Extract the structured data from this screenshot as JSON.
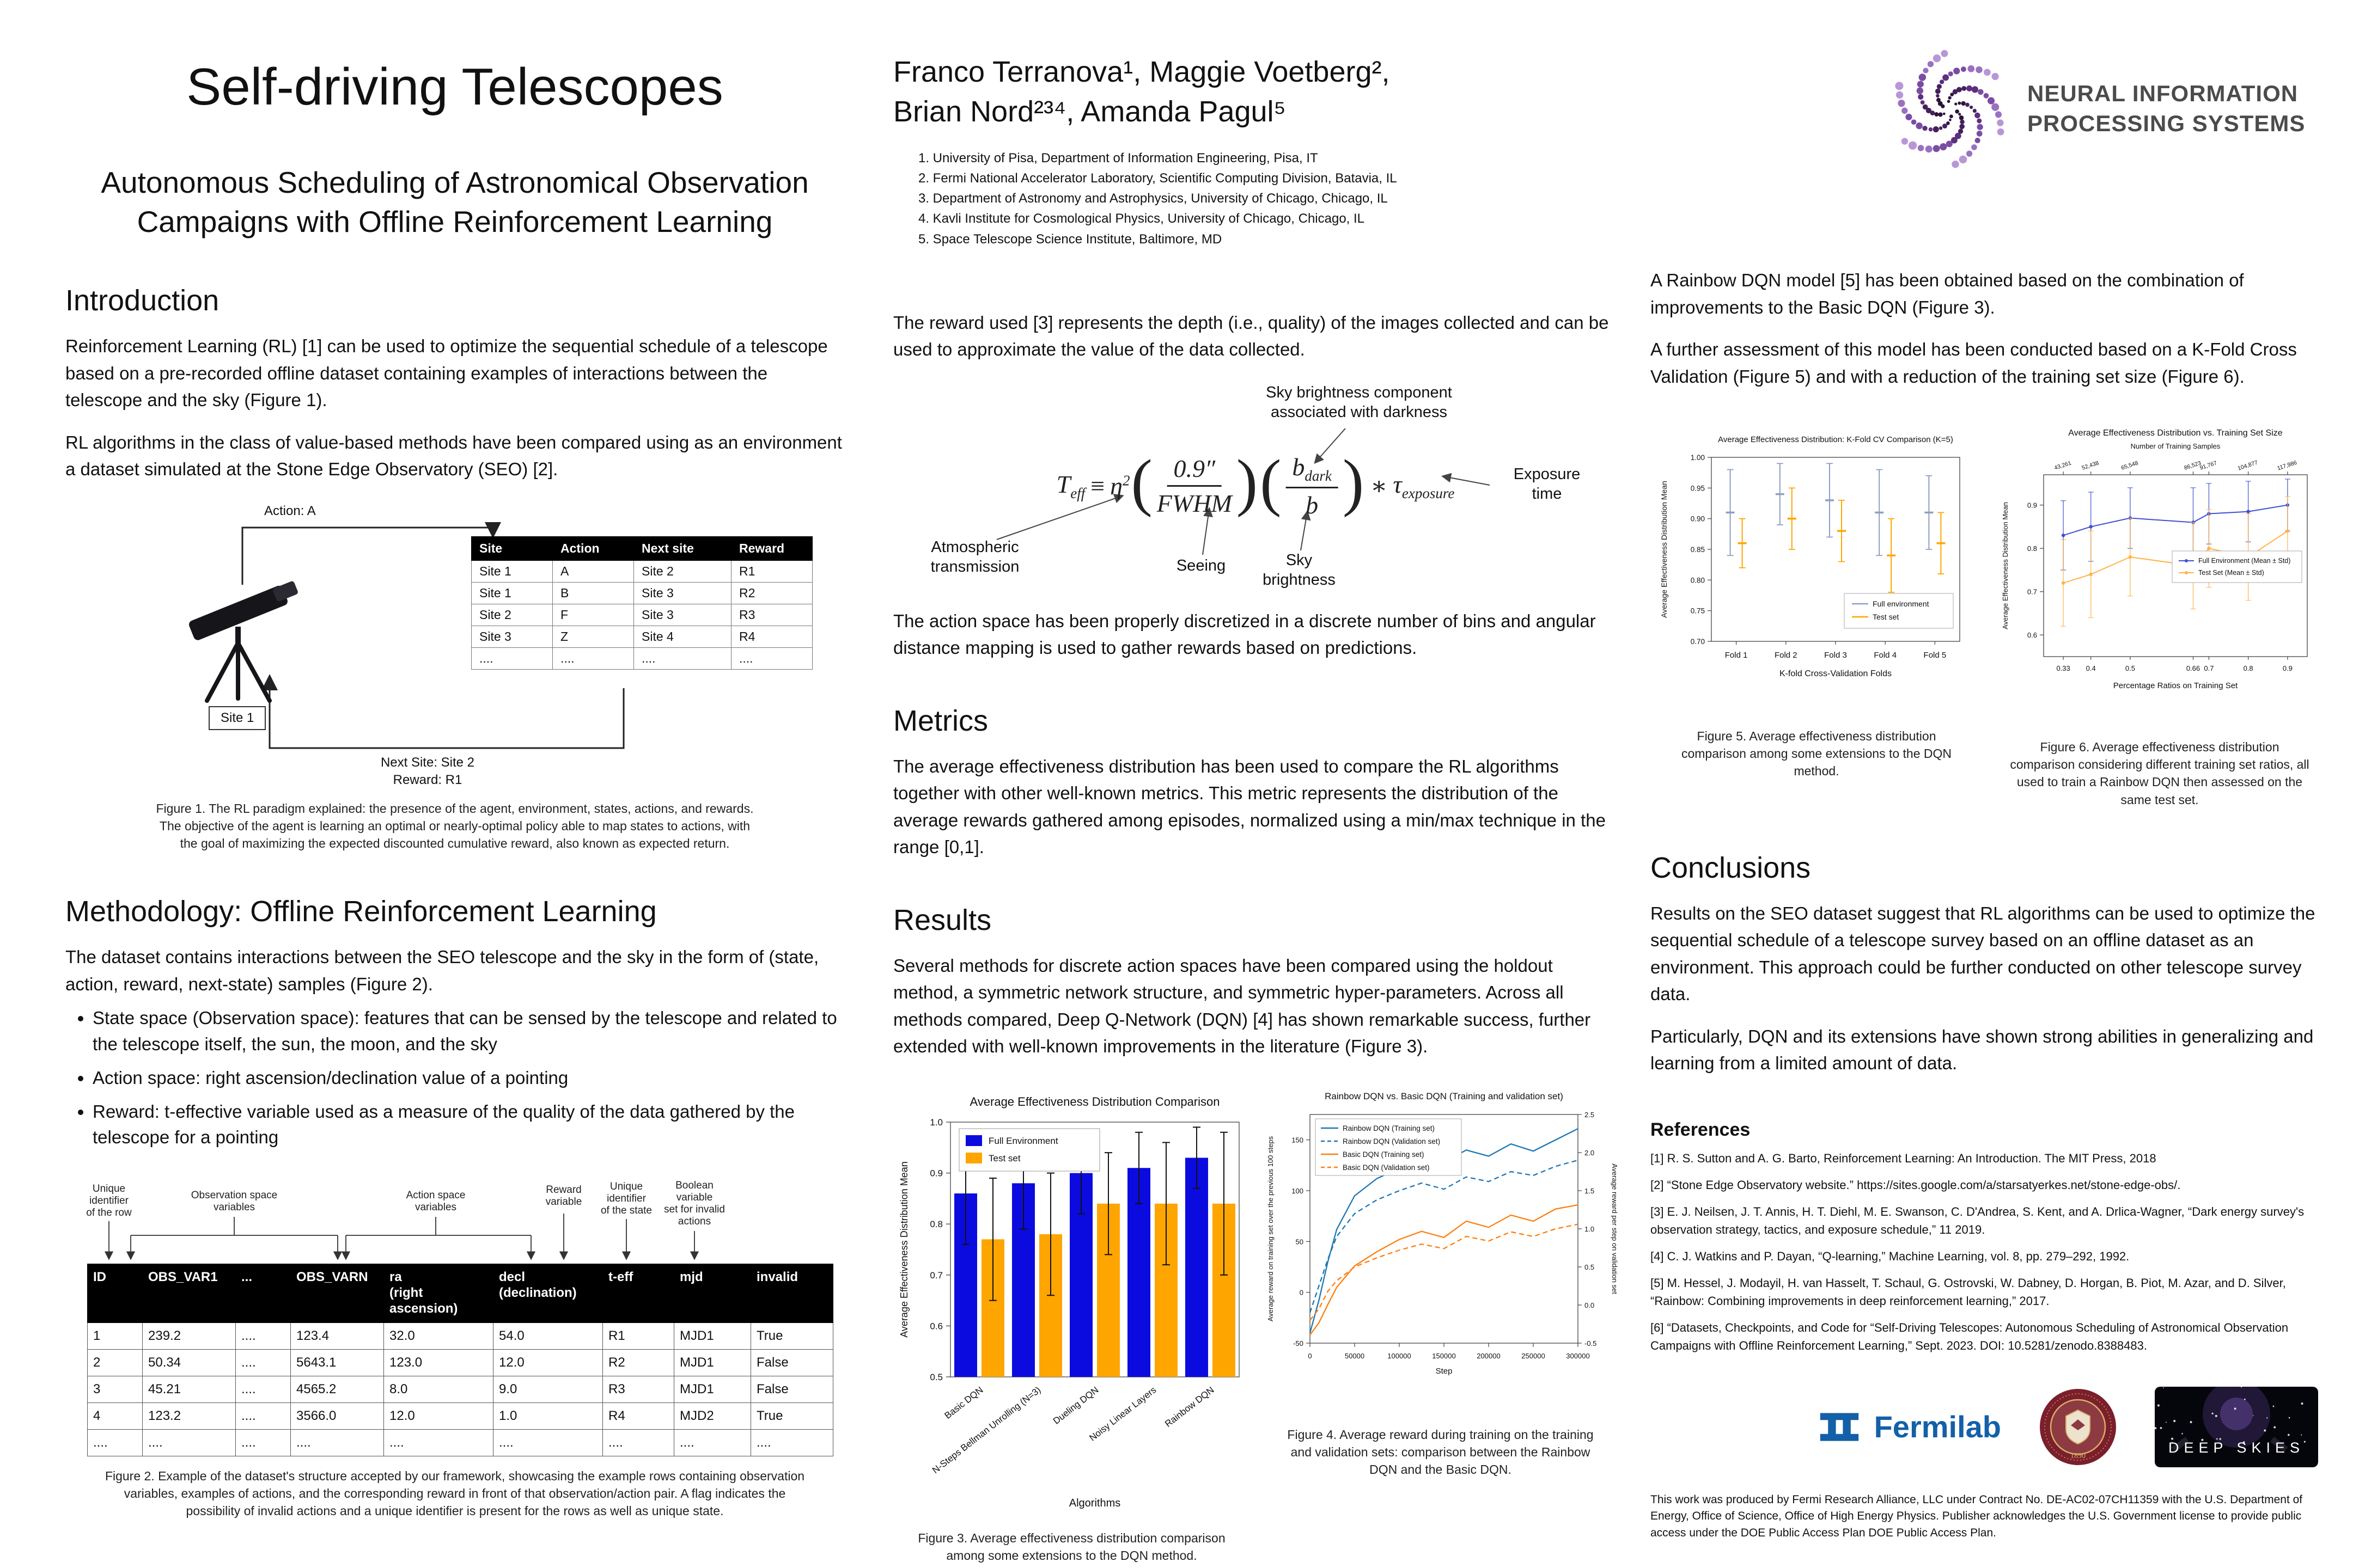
{
  "header": {
    "title": "Self-driving Telescopes",
    "subtitle": "Autonomous Scheduling of Astronomical Observation\nCampaigns with Offline Reinforcement Learning",
    "authors_line1": "Franco Terranova¹, Maggie Voetberg²,",
    "authors_line2": "Brian Nord²³⁴, Amanda Pagul⁵",
    "affiliations": [
      "1. University of Pisa, Department of Information Engineering, Pisa, IT",
      "2. Fermi National Accelerator Laboratory, Scientific Computing Division, Batavia, IL",
      "3. Department of Astronomy and Astrophysics, University of Chicago, Chicago, IL",
      "4. Kavli Institute for Cosmological Physics, University of Chicago, Chicago, IL",
      "5. Space Telescope Science Institute, Baltimore, MD"
    ],
    "neurips_text": "NEURAL INFORMATION\nPROCESSING SYSTEMS"
  },
  "intro": {
    "heading": "Introduction",
    "p1": "Reinforcement Learning (RL) [1] can be used to optimize the sequential schedule of a telescope based on a pre-recorded offline dataset containing examples of interactions between the telescope and the sky (Figure 1).",
    "p2": "RL algorithms in the class of value-based methods have been compared using as an environment a dataset simulated at the Stone Edge Observatory (SEO) [2]."
  },
  "fig1": {
    "action_label": "Action: A",
    "site_label": "Site 1",
    "next_site_label": "Next Site: Site 2",
    "reward_label": "Reward: R1",
    "table": {
      "headers": [
        "Site",
        "Action",
        "Next site",
        "Reward"
      ],
      "rows": [
        [
          "Site 1",
          "A",
          "Site 2",
          "R1"
        ],
        [
          "Site 1",
          "B",
          "Site 3",
          "R2"
        ],
        [
          "Site 2",
          "F",
          "Site 3",
          "R3"
        ],
        [
          "Site 3",
          "Z",
          "Site 4",
          "R4"
        ],
        [
          "....",
          "....",
          "....",
          "...."
        ]
      ]
    },
    "caption": "Figure 1. The RL paradigm explained: the presence of the agent, environment, states, actions, and rewards. The objective of the agent is learning an optimal or nearly-optimal policy able to map states to actions, with the goal of maximizing the expected discounted cumulative reward, also known as expected return."
  },
  "methodology": {
    "heading": "Methodology: Offline Reinforcement Learning",
    "p1": "The dataset contains interactions between the SEO telescope and the sky in the form of (state, action, reward, next-state) samples (Figure 2).",
    "bullets": [
      "State space (Observation space): features that can be sensed by the telescope and related to the telescope itself, the sun, the moon, and the sky",
      "Action space: right ascension/declination value of a pointing",
      "Reward: t-effective variable used as a measure of the quality of the data gathered by the telescope for a pointing"
    ]
  },
  "fig2": {
    "annotations": {
      "row_id": "Unique\nidentifier\nof the row",
      "obs_space": "Observation space\nvariables",
      "action_space": "Action space\nvariables",
      "reward": "Reward\nvariable",
      "state_id": "Unique\nidentifier\nof the state",
      "invalid": "Boolean\nvariable\nset for invalid\nactions"
    },
    "table": {
      "headers": [
        "ID",
        "OBS_VAR1",
        "...",
        "OBS_VARN",
        "ra\n(right\nascension)",
        "decl\n(declination)",
        "t-eff",
        "mjd",
        "invalid"
      ],
      "rows": [
        [
          "1",
          "239.2",
          "....",
          "123.4",
          "32.0",
          "54.0",
          "R1",
          "MJD1",
          "True"
        ],
        [
          "2",
          "50.34",
          "....",
          "5643.1",
          "123.0",
          "12.0",
          "R2",
          "MJD1",
          "False"
        ],
        [
          "3",
          "45.21",
          "....",
          "4565.2",
          "8.0",
          "9.0",
          "R3",
          "MJD1",
          "False"
        ],
        [
          "4",
          "123.2",
          "....",
          "3566.0",
          "12.0",
          "1.0",
          "R4",
          "MJD2",
          "True"
        ],
        [
          "....",
          "....",
          "....",
          "....",
          "....",
          "....",
          "....",
          "....",
          "...."
        ]
      ]
    },
    "caption": "Figure 2. Example of the dataset's structure accepted by our framework, showcasing the example rows containing observation variables, examples of actions, and the corresponding reward in front of that observation/action pair. A flag indicates the possibility of invalid actions and a unique identifier is present for the rows as well as unique state."
  },
  "middle": {
    "reward_p": "The reward used [3] represents the depth (i.e., quality) of the images collected and can be used to approximate the value of the data collected.",
    "action_p": "The action space has been properly discretized in a discrete number of bins and angular distance mapping is used to gather rewards based on predictions.",
    "metrics_heading": "Metrics",
    "metrics_p": "The average effectiveness distribution has been used to compare the RL algorithms together with other well-known metrics. This metric represents the distribution of the average rewards gathered among episodes, normalized using a min/max technique in the range [0,1].",
    "results_heading": "Results",
    "results_p": "Several methods for discrete action spaces have been compared using the holdout method, a symmetric network structure, and symmetric hyper-parameters. Across all methods compared, Deep Q-Network (DQN) [4] has shown remarkable success, further extended with well-known improvements in the literature (Figure 3)."
  },
  "equation": {
    "T": "T",
    "T_sub": "eff",
    "equiv": "≡",
    "eta": "η",
    "eta_sup": "2",
    "lp": "(",
    "rp": ")",
    "f1n": "0.9″",
    "f1d": "FWHM",
    "f2n": "b",
    "f2n_sub": "dark",
    "f2d": "b",
    "star": "∗",
    "tau": "τ",
    "tau_sub": "exposure",
    "ann_dark": "Sky brightness component\nassociated with darkness",
    "ann_atm": "Atmospheric\ntransmission",
    "ann_seeing": "Seeing",
    "ann_skyb": "Sky\nbrightness",
    "ann_exp": "Exposure\ntime"
  },
  "fig3_caption": "Figure 3. Average effectiveness distribution comparison among some extensions to the DQN method.",
  "fig4_caption": "Figure 4. Average reward during training on the training and validation sets: comparison between the Rainbow DQN and the Basic DQN.",
  "right": {
    "p1": "A Rainbow DQN model [5] has been obtained based on the combination of improvements to the Basic DQN (Figure 3).",
    "p2": "A further assessment of this model has been conducted based on a K-Fold Cross Validation (Figure 5) and with a reduction of the training set size (Figure 6).",
    "fig5_caption": "Figure 5. Average effectiveness distribution comparison among some extensions to the DQN method.",
    "fig6_caption": "Figure 6. Average effectiveness distribution comparison considering different training set ratios, all used to train a Rainbow DQN then assessed on the same test set.",
    "conclusions_heading": "Conclusions",
    "conclusions_p1": "Results on the SEO dataset suggest that RL algorithms can be used to optimize the sequential schedule of a telescope survey based on an offline dataset as an environment. This approach could be further conducted on other telescope survey data.",
    "conclusions_p2": "Particularly, DQN and its extensions have shown strong abilities in generalizing and learning from a limited amount of data.",
    "references_heading": "References",
    "references": [
      "[1] R. S. Sutton and A. G. Barto, Reinforcement Learning: An Introduction. The MIT Press, 2018",
      "[2] “Stone Edge Observatory website.” https://sites.google.com/a/starsatyerkes.net/stone-edge-obs/.",
      "[3] E. J. Neilsen, J. T. Annis, H. T. Diehl, M. E. Swanson, C. D'Andrea, S. Kent, and A. Drlica-Wagner, “Dark energy survey's observation strategy, tactics, and exposure schedule,” 11 2019.",
      "[4] C. J. Watkins and P. Dayan, “Q-learning,” Machine Learning, vol. 8, pp. 279–292, 1992.",
      "[5] M. Hessel, J. Modayil, H. van Hasselt, T. Schaul, G. Ostrovski, W. Dabney, D. Horgan, B. Piot, M. Azar, and D. Silver, “Rainbow: Combining improvements in deep reinforcement learning,” 2017.",
      "[6] “Datasets, Checkpoints, and Code for “Self-Driving Telescopes: Autonomous Scheduling of Astronomical Observation Campaigns with Offline Reinforcement Learning,” Sept. 2023. DOI: 10.5281/zenodo.8388483."
    ],
    "ack": "This work was produced by Fermi Research Alliance, LLC under Contract No. DE-AC02-07CH11359 with the U.S. Department of Energy, Office of Science, Office of High Energy Physics. Publisher acknowledges the U.S. Government license to provide public access under the DOE Public Access Plan DOE Public Access Plan."
  },
  "logos": {
    "fermilab": "Fermilab",
    "deep_skies": "DEEP SKIES",
    "uchicago_year": "1890"
  },
  "chart_data": [
    {
      "id": "fig3",
      "type": "bar",
      "title": "Average Effectiveness Distribution Comparison",
      "xlabel": "Algorithms",
      "ylabel": "Average Effectiveness Distribution Mean",
      "ylim": [
        0.5,
        1.0
      ],
      "yticks": [
        "0.5",
        "0.6",
        "0.7",
        "0.8",
        "0.9",
        "1.0"
      ],
      "categories": [
        "Basic DQN",
        "N-Steps Bellman Unrolling (N=3)",
        "Dueling DQN",
        "Noisy Linear Layers",
        "Rainbow DQN"
      ],
      "series": [
        {
          "name": "Full Environment",
          "color": "#0b0bdf",
          "values": [
            0.86,
            0.88,
            0.9,
            0.91,
            0.93
          ],
          "errors": [
            0.1,
            0.09,
            0.08,
            0.07,
            0.06
          ]
        },
        {
          "name": "Test set",
          "color": "#ffa500",
          "values": [
            0.77,
            0.78,
            0.84,
            0.84,
            0.84
          ],
          "errors": [
            0.12,
            0.12,
            0.1,
            0.12,
            0.14
          ]
        }
      ]
    },
    {
      "id": "fig4",
      "type": "line",
      "title": "Rainbow DQN vs. Basic DQN (Training and validation set)",
      "xlabel": "Step",
      "ylabel_left": "Average reward on training set over the previous 100 steps",
      "ylabel_right": "Average reward per step on validation set",
      "xlim": [
        0,
        300000
      ],
      "xticks": [
        "0",
        "50000",
        "100000",
        "150000",
        "200000",
        "250000",
        "300000"
      ],
      "ylim_left": [
        -50,
        175
      ],
      "yticks_left": [
        "-50",
        "0",
        "50",
        "100",
        "150"
      ],
      "ylim_right": [
        -0.5,
        2.5
      ],
      "yticks_right": [
        "-0.5",
        "0.0",
        "0.5",
        "1.0",
        "1.5",
        "2.0",
        "2.5"
      ],
      "x": [
        0,
        10000,
        20000,
        30000,
        50000,
        75000,
        100000,
        125000,
        150000,
        175000,
        200000,
        225000,
        250000,
        275000,
        300000
      ],
      "series": [
        {
          "name": "Rainbow DQN (Training set)",
          "axis": "left",
          "style": "solid",
          "color": "#1f77b4",
          "values": [
            -40,
            -8,
            30,
            62,
            95,
            112,
            122,
            135,
            128,
            140,
            134,
            146,
            139,
            150,
            161
          ]
        },
        {
          "name": "Rainbow DQN (Validation set)",
          "axis": "right",
          "style": "dashed",
          "color": "#1f77b4",
          "values": [
            -0.1,
            0.25,
            0.6,
            0.9,
            1.2,
            1.38,
            1.5,
            1.6,
            1.52,
            1.68,
            1.62,
            1.75,
            1.7,
            1.82,
            1.9
          ]
        },
        {
          "name": "Basic DQN (Training set)",
          "axis": "left",
          "style": "solid",
          "color": "#ff7f0e",
          "values": [
            -42,
            -30,
            -12,
            5,
            26,
            40,
            52,
            60,
            54,
            70,
            64,
            76,
            70,
            82,
            86
          ]
        },
        {
          "name": "Basic DQN (Validation set)",
          "axis": "right",
          "style": "dashed",
          "color": "#ff7f0e",
          "values": [
            -0.2,
            -0.05,
            0.18,
            0.32,
            0.5,
            0.62,
            0.72,
            0.8,
            0.74,
            0.9,
            0.84,
            0.96,
            0.9,
            1.0,
            1.06
          ]
        }
      ]
    },
    {
      "id": "fig5",
      "type": "errorbar",
      "title": "Average Effectiveness Distribution: K-Fold CV Comparison (K=5)",
      "xlabel": "K-fold Cross-Validation Folds",
      "ylabel": "Average Effectiveness Distribution Mean",
      "ylim": [
        0.7,
        1.0
      ],
      "yticks": [
        "0.70",
        "0.75",
        "0.80",
        "0.85",
        "0.90",
        "0.95",
        "1.00"
      ],
      "categories": [
        "Fold 1",
        "Fold 2",
        "Fold 3",
        "Fold 4",
        "Fold 5"
      ],
      "series": [
        {
          "name": "Full environment",
          "color": "#8e9fc4",
          "values": [
            0.91,
            0.94,
            0.93,
            0.91,
            0.91
          ],
          "errors": [
            0.07,
            0.05,
            0.06,
            0.07,
            0.06
          ]
        },
        {
          "name": "Test set",
          "color": "#ffa500",
          "values": [
            0.86,
            0.9,
            0.88,
            0.84,
            0.86
          ],
          "errors": [
            0.04,
            0.05,
            0.05,
            0.06,
            0.05
          ]
        }
      ]
    },
    {
      "id": "fig6",
      "type": "line-errorbar",
      "title": "Average Effectiveness Distribution vs. Training Set Size",
      "top_axis_title": "Number of Training Samples",
      "top_axis_labels": [
        "43,261",
        "52,438",
        "65,548",
        "86,523",
        "91,767",
        "104,877",
        "117,986"
      ],
      "xlabel": "Percentage Ratios on Training Set",
      "ylabel": "Average Effectiveness Distribution Mean",
      "x": [
        0.33,
        0.4,
        0.5,
        0.66,
        0.7,
        0.8,
        0.9
      ],
      "xtick_labels": [
        "0.33",
        "0.4",
        "0.5",
        "0.66",
        "0.7",
        "0.8",
        "0.9"
      ],
      "ylim": [
        0.55,
        0.97
      ],
      "yticks": [
        "0.6",
        "0.7",
        "0.8",
        "0.9"
      ],
      "series": [
        {
          "name": "Full Environment (Mean ± Std)",
          "color": "#3d4fd0",
          "values": [
            0.83,
            0.85,
            0.87,
            0.86,
            0.88,
            0.885,
            0.9
          ],
          "errors": [
            0.08,
            0.08,
            0.07,
            0.08,
            0.07,
            0.07,
            0.06
          ]
        },
        {
          "name": "Test Set (Mean ± Std)",
          "color": "#ffb347",
          "values": [
            0.72,
            0.74,
            0.78,
            0.76,
            0.8,
            0.78,
            0.84
          ],
          "errors": [
            0.1,
            0.1,
            0.09,
            0.1,
            0.09,
            0.1,
            0.08
          ]
        }
      ]
    }
  ]
}
